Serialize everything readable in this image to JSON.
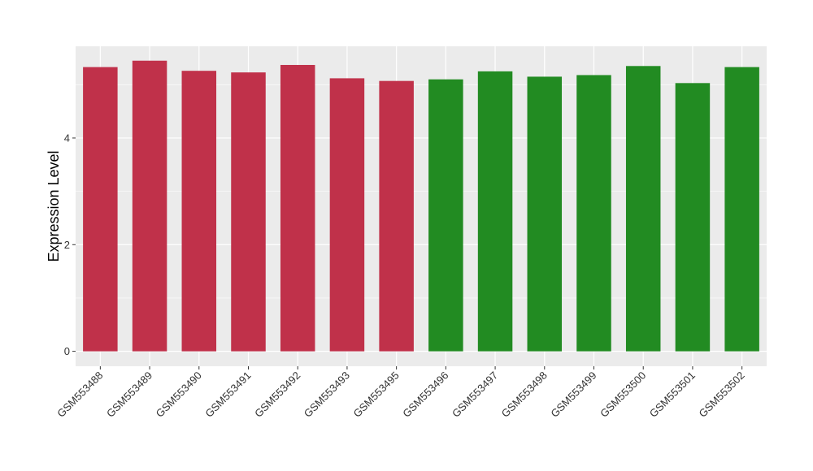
{
  "chart_data": {
    "type": "bar",
    "title": "",
    "xlabel": "",
    "ylabel": "Expression Level",
    "ylim": [
      -0.28,
      5.72
    ],
    "yticks": [
      0,
      2,
      4
    ],
    "grid": true,
    "legend": "none",
    "categories": [
      "GSM553488",
      "GSM553489",
      "GSM553490",
      "GSM553491",
      "GSM553492",
      "GSM553493",
      "GSM553495",
      "GSM553496",
      "GSM553497",
      "GSM553498",
      "GSM553499",
      "GSM553500",
      "GSM553501",
      "GSM553502"
    ],
    "values": [
      5.33,
      5.45,
      5.26,
      5.23,
      5.37,
      5.12,
      5.07,
      5.1,
      5.25,
      5.15,
      5.18,
      5.35,
      5.03,
      5.33
    ],
    "colors": [
      "#c0314a",
      "#c0314a",
      "#c0314a",
      "#c0314a",
      "#c0314a",
      "#c0314a",
      "#c0314a",
      "#228b22",
      "#228b22",
      "#228b22",
      "#228b22",
      "#228b22",
      "#228b22",
      "#228b22"
    ],
    "panel_background": "#ebebeb",
    "gridline_color": "#ffffff"
  }
}
